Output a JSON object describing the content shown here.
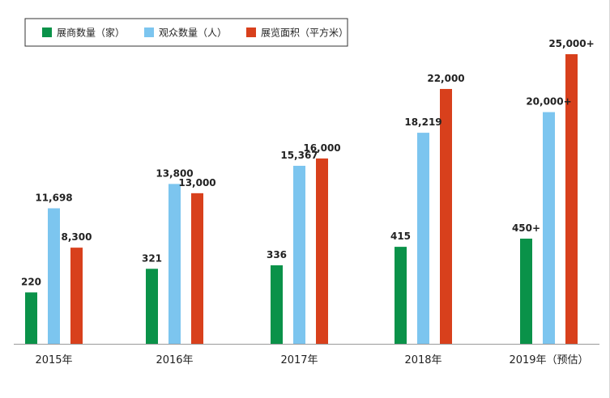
{
  "chart_data": {
    "type": "bar",
    "categories": [
      "2015年",
      "2016年",
      "2017年",
      "2018年",
      "2019年（预估）"
    ],
    "series": [
      {
        "name": "展商数量（家）",
        "color": "#0a9249",
        "values": [
          220,
          321,
          336,
          415,
          450
        ],
        "labels": [
          "220",
          "321",
          "336",
          "415",
          "450+"
        ]
      },
      {
        "name": "观众数量（人）",
        "color": "#7cc5ef",
        "values": [
          11698,
          13800,
          15367,
          18219,
          20000
        ],
        "labels": [
          "11,698",
          "13,800",
          "15,367",
          "18,219",
          "20,000+"
        ]
      },
      {
        "name": "展览面积（平方米）",
        "color": "#d8401c",
        "values": [
          8300,
          13000,
          16000,
          22000,
          25000
        ],
        "labels": [
          "8,300",
          "13,000",
          "16,000",
          "22,000",
          "25,000+"
        ]
      }
    ],
    "legend_position": "top-left",
    "grid": false
  }
}
